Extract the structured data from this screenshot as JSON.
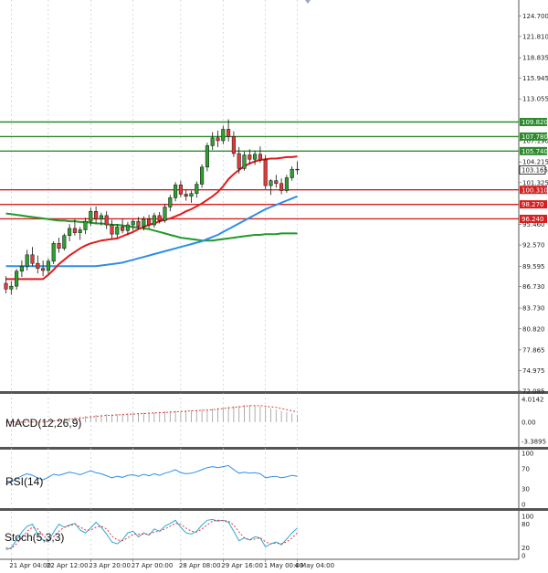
{
  "chart_data": {
    "type": "candlestick",
    "main": {
      "y_ticks": [
        124.7,
        121.81,
        118.835,
        115.945,
        113.055,
        107.19,
        104.215,
        101.325,
        95.46,
        92.57,
        89.595,
        86.73,
        83.73,
        80.82,
        77.865,
        74.975,
        72.085
      ],
      "ylim": [
        72.085,
        125.9
      ],
      "price_label": "103.165",
      "support_resistance": [
        {
          "value": 109.82,
          "label": "109.820",
          "color": "#2e8b2e"
        },
        {
          "value": 107.78,
          "label": "107.780",
          "color": "#2e8b2e"
        },
        {
          "value": 105.74,
          "label": "105.740",
          "color": "#2e8b2e"
        },
        {
          "value": 100.31,
          "label": "100.310",
          "color": "#d42020"
        },
        {
          "value": 98.27,
          "label": "98.270",
          "color": "#d42020"
        },
        {
          "value": 96.24,
          "label": "96.240",
          "color": "#d42020"
        }
      ],
      "candles": [
        [
          87.2,
          88.2,
          85.8,
          86.4
        ],
        [
          86.4,
          87.5,
          85.6,
          86.8
        ],
        [
          86.8,
          89.2,
          86.3,
          88.9
        ],
        [
          88.9,
          90.4,
          88.1,
          89.6
        ],
        [
          89.6,
          91.9,
          89.0,
          91.2
        ],
        [
          91.2,
          92.3,
          89.6,
          90.0
        ],
        [
          90.0,
          91.1,
          88.6,
          89.3
        ],
        [
          89.3,
          90.4,
          88.2,
          89.0
        ],
        [
          89.0,
          90.7,
          88.5,
          90.3
        ],
        [
          90.3,
          93.1,
          89.9,
          92.8
        ],
        [
          92.8,
          93.6,
          91.5,
          92.1
        ],
        [
          92.1,
          94.2,
          91.8,
          93.9
        ],
        [
          93.9,
          95.5,
          93.1,
          94.9
        ],
        [
          94.9,
          96.2,
          93.9,
          94.3
        ],
        [
          94.3,
          95.1,
          93.3,
          94.7
        ],
        [
          94.7,
          96.4,
          94.1,
          95.9
        ],
        [
          95.9,
          97.8,
          95.2,
          97.3
        ],
        [
          97.3,
          98.0,
          95.6,
          96.2
        ],
        [
          96.2,
          97.1,
          95.3,
          96.7
        ],
        [
          96.7,
          97.3,
          94.8,
          95.4
        ],
        [
          95.4,
          96.1,
          93.5,
          94.1
        ],
        [
          94.1,
          95.5,
          93.6,
          95.1
        ],
        [
          95.1,
          96.3,
          94.2,
          94.6
        ],
        [
          94.6,
          95.8,
          94.0,
          95.4
        ],
        [
          95.4,
          96.2,
          94.6,
          95.9
        ],
        [
          95.9,
          96.5,
          94.8,
          95.2
        ],
        [
          95.2,
          96.6,
          94.6,
          96.2
        ],
        [
          96.2,
          96.8,
          94.9,
          95.4
        ],
        [
          95.4,
          97.1,
          95.0,
          96.7
        ],
        [
          96.7,
          97.2,
          95.6,
          96.0
        ],
        [
          96.0,
          98.3,
          95.7,
          97.9
        ],
        [
          97.9,
          99.6,
          97.3,
          99.2
        ],
        [
          99.2,
          101.4,
          98.7,
          101.0
        ],
        [
          101.0,
          101.6,
          99.3,
          99.7
        ],
        [
          99.7,
          100.3,
          98.8,
          99.4
        ],
        [
          99.4,
          100.2,
          98.5,
          99.8
        ],
        [
          99.8,
          101.5,
          99.2,
          101.1
        ],
        [
          101.1,
          103.9,
          100.6,
          103.5
        ],
        [
          103.5,
          106.9,
          102.9,
          106.5
        ],
        [
          106.5,
          108.4,
          105.9,
          107.6
        ],
        [
          107.6,
          108.6,
          106.3,
          107.2
        ],
        [
          107.2,
          109.3,
          106.7,
          108.8
        ],
        [
          108.8,
          110.2,
          107.1,
          107.8
        ],
        [
          107.8,
          108.5,
          104.9,
          105.4
        ],
        [
          105.4,
          106.3,
          102.6,
          103.3
        ],
        [
          103.3,
          105.7,
          103.0,
          105.2
        ],
        [
          105.2,
          106.0,
          103.9,
          104.6
        ],
        [
          104.6,
          105.8,
          103.8,
          105.3
        ],
        [
          105.3,
          106.4,
          104.1,
          104.5
        ],
        [
          104.5,
          105.2,
          100.4,
          100.9
        ],
        [
          100.9,
          101.8,
          99.6,
          101.6
        ],
        [
          101.6,
          102.4,
          100.6,
          101.2
        ],
        [
          101.2,
          101.9,
          99.7,
          100.2
        ],
        [
          100.2,
          102.4,
          99.9,
          102.0
        ],
        [
          102.0,
          103.6,
          101.6,
          103.2
        ],
        [
          103.2,
          104.3,
          102.5,
          103.1
        ]
      ],
      "ma_red": [
        87.8,
        87.8,
        87.8,
        87.8,
        87.8,
        87.8,
        87.8,
        87.8,
        88.4,
        89.1,
        89.9,
        90.5,
        91.1,
        91.6,
        92.1,
        92.5,
        92.8,
        93.0,
        93.2,
        93.3,
        93.4,
        93.5,
        93.8,
        94.1,
        94.4,
        94.8,
        95.1,
        95.4,
        95.6,
        95.9,
        96.1,
        96.3,
        96.6,
        96.9,
        97.3,
        97.6,
        98.0,
        98.4,
        98.9,
        99.4,
        100.0,
        100.8,
        101.8,
        102.5,
        103.1,
        103.6,
        104.0,
        104.3,
        104.5,
        104.6,
        104.7,
        104.7,
        104.8,
        104.9,
        104.9,
        105.0
      ],
      "ma_blue": [
        89.6,
        89.6,
        89.6,
        89.6,
        89.6,
        89.6,
        89.6,
        89.6,
        89.6,
        89.6,
        89.6,
        89.6,
        89.6,
        89.6,
        89.6,
        89.6,
        89.6,
        89.6,
        89.7,
        89.8,
        89.9,
        90.0,
        90.1,
        90.3,
        90.5,
        90.7,
        90.9,
        91.1,
        91.3,
        91.5,
        91.7,
        91.9,
        92.1,
        92.3,
        92.5,
        92.7,
        92.9,
        93.1,
        93.4,
        93.7,
        94.0,
        94.4,
        94.8,
        95.2,
        95.6,
        96.0,
        96.4,
        96.8,
        97.2,
        97.6,
        97.9,
        98.2,
        98.5,
        98.8,
        99.1,
        99.4
      ],
      "ma_green": [
        97.0,
        96.9,
        96.8,
        96.7,
        96.6,
        96.5,
        96.4,
        96.3,
        96.2,
        96.1,
        96.0,
        96.0,
        95.9,
        95.9,
        95.8,
        95.8,
        95.7,
        95.6,
        95.6,
        95.5,
        95.4,
        95.4,
        95.3,
        95.2,
        95.1,
        95.0,
        94.9,
        94.8,
        94.6,
        94.4,
        94.2,
        94.0,
        93.8,
        93.6,
        93.5,
        93.4,
        93.3,
        93.2,
        93.2,
        93.2,
        93.3,
        93.4,
        93.5,
        93.6,
        93.7,
        93.8,
        93.9,
        94.0,
        94.0,
        94.1,
        94.1,
        94.1,
        94.2,
        94.2,
        94.2,
        94.2
      ]
    },
    "macd": {
      "label": "MACD(12,26,9)",
      "y_ticks": [
        "4.0142",
        "0.00",
        "-3.3895"
      ],
      "ylim": [
        -3.3895,
        4.0142
      ],
      "histogram": [
        0.0,
        0.0,
        0.0,
        0.0,
        0.0,
        0.0,
        0.0,
        0.0,
        0.2,
        0.4,
        0.5,
        0.7,
        0.8,
        0.9,
        1.0,
        1.1,
        1.2,
        1.3,
        1.3,
        1.4,
        1.4,
        1.4,
        1.5,
        1.5,
        1.6,
        1.6,
        1.7,
        1.7,
        1.8,
        1.8,
        1.9,
        1.9,
        2.0,
        2.0,
        2.1,
        2.1,
        2.2,
        2.2,
        2.3,
        2.4,
        2.5,
        2.6,
        2.7,
        2.8,
        2.9,
        3.0,
        3.0,
        2.9,
        2.8,
        2.6,
        2.4,
        2.2,
        2.0,
        1.8,
        1.5,
        1.3
      ],
      "signal": [
        0.0,
        0.0,
        0.0,
        0.0,
        0.0,
        0.0,
        0.0,
        0.0,
        0.1,
        0.2,
        0.3,
        0.4,
        0.5,
        0.6,
        0.7,
        0.8,
        0.9,
        1.0,
        1.1,
        1.2,
        1.2,
        1.3,
        1.3,
        1.4,
        1.4,
        1.5,
        1.5,
        1.6,
        1.6,
        1.7,
        1.7,
        1.8,
        1.8,
        1.9,
        1.9,
        2.0,
        2.0,
        2.1,
        2.1,
        2.2,
        2.3,
        2.4,
        2.5,
        2.6,
        2.7,
        2.8,
        2.9,
        2.9,
        2.9,
        2.8,
        2.7,
        2.6,
        2.4,
        2.2,
        2.0,
        1.8
      ]
    },
    "rsi": {
      "label": "RSI(14)",
      "y_ticks": [
        "100",
        "70",
        "30",
        "0"
      ],
      "ylim": [
        0,
        100
      ],
      "values": [
        40,
        44,
        50,
        56,
        60,
        57,
        52,
        48,
        53,
        59,
        57,
        60,
        63,
        61,
        58,
        62,
        66,
        62,
        60,
        56,
        52,
        55,
        53,
        57,
        58,
        55,
        59,
        56,
        60,
        57,
        61,
        64,
        68,
        62,
        60,
        61,
        64,
        68,
        72,
        74,
        72,
        74,
        76,
        68,
        61,
        63,
        61,
        62,
        60,
        52,
        54,
        55,
        52,
        54,
        57,
        55
      ]
    },
    "stoch": {
      "label": "Stoch(5,3,3)",
      "y_ticks": [
        "100",
        "80",
        "20",
        "0"
      ],
      "ylim": [
        0,
        100
      ],
      "k": [
        15,
        20,
        40,
        60,
        75,
        80,
        55,
        40,
        35,
        60,
        80,
        72,
        78,
        82,
        65,
        58,
        70,
        85,
        72,
        55,
        35,
        30,
        40,
        58,
        62,
        48,
        58,
        52,
        68,
        62,
        75,
        82,
        90,
        72,
        58,
        55,
        62,
        78,
        90,
        92,
        88,
        90,
        85,
        62,
        38,
        45,
        40,
        48,
        45,
        22,
        30,
        35,
        28,
        42,
        58,
        70
      ],
      "d": [
        20,
        18,
        30,
        45,
        62,
        72,
        68,
        52,
        40,
        48,
        62,
        72,
        76,
        80,
        73,
        65,
        65,
        72,
        75,
        68,
        50,
        40,
        38,
        45,
        55,
        55,
        55,
        55,
        60,
        62,
        68,
        75,
        82,
        80,
        70,
        62,
        60,
        68,
        78,
        88,
        90,
        89,
        88,
        78,
        60,
        45,
        40,
        42,
        45,
        35,
        30,
        32,
        30,
        35,
        45,
        58
      ]
    },
    "x_labels": [
      {
        "index": 1,
        "label": "21 Apr 04:00"
      },
      {
        "index": 8,
        "label": "22 Apr 12:00"
      },
      {
        "index": 16,
        "label": "23 Apr 20:00"
      },
      {
        "index": 24,
        "label": "27 Apr 00:00"
      },
      {
        "index": 33,
        "label": "28 Apr 08:00"
      },
      {
        "index": 41,
        "label": "29 Apr 16:00"
      },
      {
        "index": 49,
        "label": "1 May 00:00"
      },
      {
        "index": 55,
        "label": "4 May 04:00"
      }
    ]
  }
}
